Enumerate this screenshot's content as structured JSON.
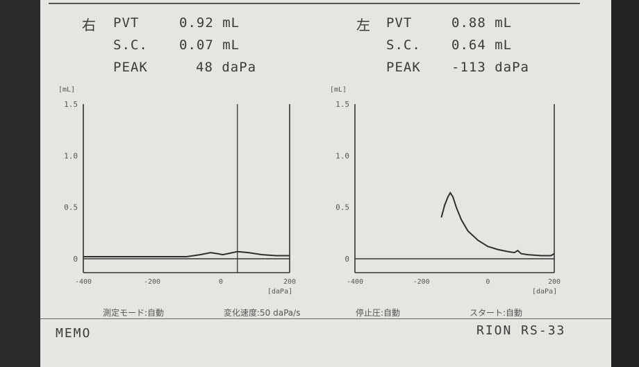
{
  "header": {
    "right": {
      "side_label": "右",
      "pvt_label": "PVT",
      "pvt_value": "0.92 mL",
      "sc_label": "S.C.",
      "sc_value": "0.07 mL",
      "peak_label": "PEAK",
      "peak_value": "48 daPa"
    },
    "left": {
      "side_label": "左",
      "pvt_label": "PVT",
      "pvt_value": "0.88 mL",
      "sc_label": "S.C.",
      "sc_value": "0.64 mL",
      "peak_label": "PEAK",
      "peak_value": "-113 daPa"
    }
  },
  "chart_data": [
    {
      "type": "line",
      "title": "右",
      "ylabel": "[mL]",
      "xlabel": "[daPa]",
      "xlim": [
        -400,
        200
      ],
      "ylim": [
        0,
        1.5
      ],
      "x_tick_labels": [
        "-400",
        "-200",
        "0",
        "200"
      ],
      "y_tick_labels": [
        "0",
        "0.5",
        "1.0",
        "1.5"
      ],
      "peak_marker_x": 48,
      "grid": false,
      "series": [
        {
          "x": [
            -400,
            -100,
            -60,
            -30,
            -10,
            5,
            20,
            48,
            80,
            120,
            160,
            200
          ],
          "y": [
            0.02,
            0.02,
            0.04,
            0.06,
            0.05,
            0.04,
            0.05,
            0.07,
            0.06,
            0.04,
            0.03,
            0.03
          ]
        }
      ]
    },
    {
      "type": "line",
      "title": "左",
      "ylabel": "[mL]",
      "xlabel": "[daPa]",
      "xlim": [
        -400,
        200
      ],
      "ylim": [
        0,
        1.5
      ],
      "x_tick_labels": [
        "-400",
        "-200",
        "0",
        "200"
      ],
      "y_tick_labels": [
        "0",
        "0.5",
        "1.0",
        "1.5"
      ],
      "grid": false,
      "series": [
        {
          "x": [
            -140,
            -130,
            -120,
            -113,
            -105,
            -95,
            -80,
            -60,
            -30,
            0,
            30,
            60,
            80,
            90,
            100,
            120,
            160,
            190,
            200
          ],
          "y": [
            0.4,
            0.52,
            0.6,
            0.64,
            0.6,
            0.5,
            0.38,
            0.27,
            0.18,
            0.12,
            0.09,
            0.07,
            0.06,
            0.08,
            0.05,
            0.04,
            0.03,
            0.03,
            0.05
          ]
        }
      ]
    }
  ],
  "footer": {
    "item1": "測定モード:自動",
    "item2": "変化速度:50 daPa/s",
    "item3": "停止圧:自動",
    "item4": "スタート:自動",
    "memo": "MEMO",
    "model": "RION RS-33"
  }
}
